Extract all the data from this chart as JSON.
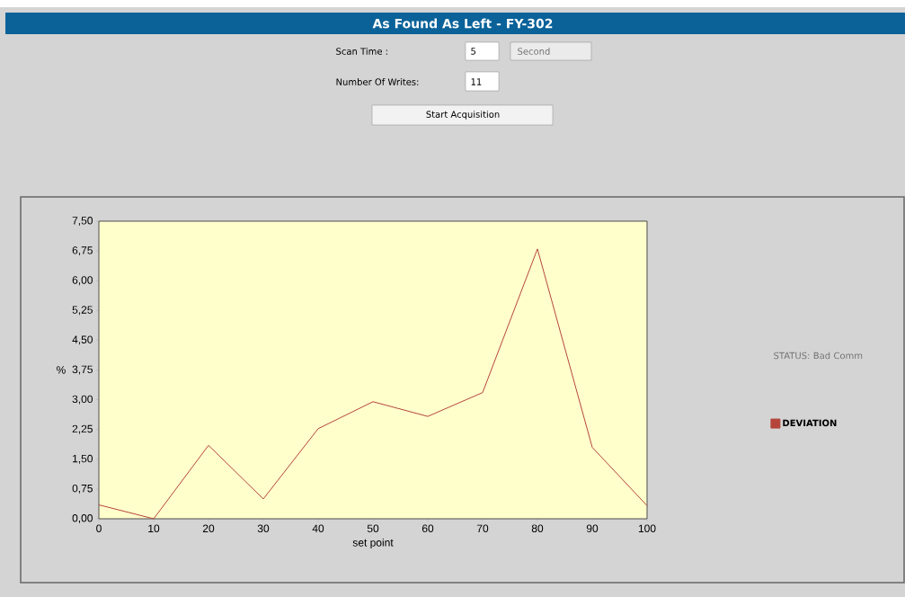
{
  "chart_data": {
    "type": "line",
    "title": "As Found As Left - FY-302",
    "xlabel": "set point",
    "ylabel": "%",
    "annotations": [
      "Scan Time :",
      "5",
      "Second",
      "Number Of Writes:",
      "11",
      "Start Acquisition",
      "STATUS: Bad Comm"
    ],
    "x": [
      0,
      10,
      20,
      30,
      40,
      50,
      60,
      70,
      80,
      90,
      100
    ],
    "series": [
      {
        "name": "DEVIATION",
        "color": "#b5453a",
        "values": [
          0.35,
          0.0,
          1.85,
          0.5,
          2.27,
          2.95,
          2.58,
          3.18,
          6.8,
          1.8,
          0.33
        ]
      }
    ],
    "xlim": [
      0,
      100
    ],
    "xticks": [
      0,
      10,
      20,
      30,
      40,
      50,
      60,
      70,
      80,
      90,
      100
    ],
    "ylim": [
      0,
      7.5
    ],
    "yticks": [
      {
        "value": 0,
        "label": "0,00"
      },
      {
        "value": 0.75,
        "label": "0,75"
      },
      {
        "value": 1.5,
        "label": "1,50"
      },
      {
        "value": 2.25,
        "label": "2,25"
      },
      {
        "value": 3,
        "label": "3,00"
      },
      {
        "value": 3.75,
        "label": "3,75"
      },
      {
        "value": 4.5,
        "label": "4,50"
      },
      {
        "value": 5.25,
        "label": "5,25"
      },
      {
        "value": 6,
        "label": "6,00"
      },
      {
        "value": 6.75,
        "label": "6,75"
      },
      {
        "value": 7.5,
        "label": "7,50"
      }
    ],
    "legend": "right",
    "grid": false,
    "marker": "none",
    "line_style": "solid"
  }
}
